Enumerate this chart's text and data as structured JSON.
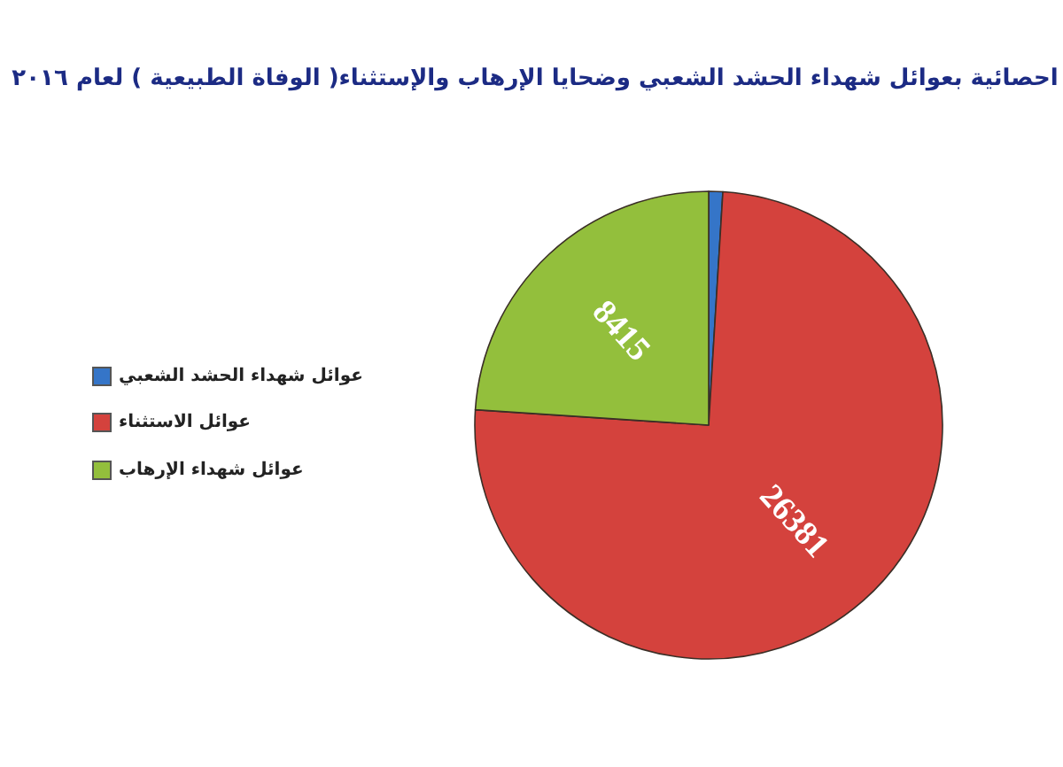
{
  "chart_data": {
    "type": "pie",
    "title": "احصائية بعوائل شهداء الحشد الشعبي وضحايا الإرهاب والإستثناء( الوفاة الطبيعية ) لعام ٢٠١٦",
    "categories": [
      "عوائل شهداء الحشد الشعبي",
      "عوائل الاستثناء",
      "عوائل شهداء الإرهاب"
    ],
    "values": [
      340,
      26381,
      8415
    ],
    "colors": [
      "#3575c8",
      "#d4423d",
      "#93bf3c"
    ],
    "value_labels": [
      null,
      "26381",
      "8415"
    ],
    "legend": "left"
  }
}
